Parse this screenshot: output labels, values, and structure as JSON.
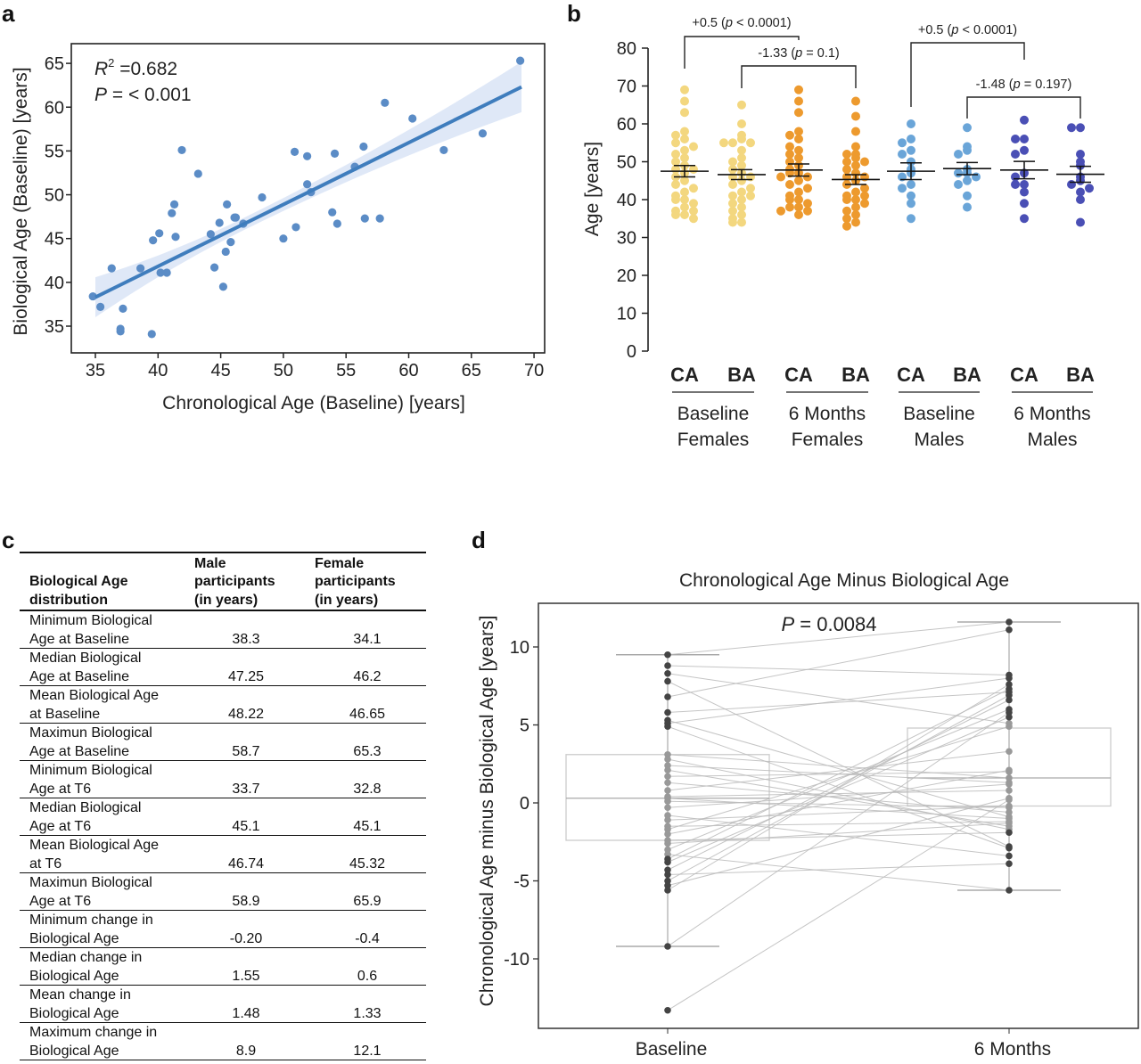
{
  "panels": {
    "a": "a",
    "b": "b",
    "c": "c",
    "d": "d"
  },
  "chart_data": [
    {
      "panel": "a",
      "type": "scatter",
      "xlabel": "Chronological Age (Baseline) [years]",
      "ylabel": "Biological Age (Baseline) [years]",
      "xlim": [
        33,
        71
      ],
      "ylim": [
        32.5,
        68
      ],
      "xticks": [
        "35",
        "40",
        "45",
        "50",
        "55",
        "60",
        "65",
        "70"
      ],
      "yticks": [
        "35",
        "40",
        "45",
        "50",
        "55",
        "60",
        "65"
      ],
      "annotation": {
        "r2_label": "R",
        "r2_sup": "2",
        "r2_value": " =0.682",
        "p_label": "P",
        "p_value": " = < 0.001"
      },
      "fit_line": {
        "x": [
          35,
          69
        ],
        "y": [
          38.3,
          62.3
        ]
      },
      "colors": {
        "points": "#5b8cc6",
        "line": "#3f7dbd",
        "band": "#dce6f6"
      },
      "points": [
        [
          68.9,
          65.3
        ],
        [
          58.1,
          60.5
        ],
        [
          60.3,
          58.7
        ],
        [
          41.9,
          55.1
        ],
        [
          50.9,
          54.9
        ],
        [
          51.9,
          54.4
        ],
        [
          54.1,
          54.7
        ],
        [
          56.4,
          55.5
        ],
        [
          65.9,
          57.0
        ],
        [
          62.8,
          55.1
        ],
        [
          43.2,
          52.4
        ],
        [
          55.7,
          53.2
        ],
        [
          51.9,
          51.2
        ],
        [
          52.2,
          50.3
        ],
        [
          48.3,
          49.7
        ],
        [
          45.5,
          48.9
        ],
        [
          41.3,
          48.9
        ],
        [
          41.1,
          47.9
        ],
        [
          46.1,
          47.4
        ],
        [
          46.2,
          47.4
        ],
        [
          46.8,
          46.7
        ],
        [
          44.9,
          46.8
        ],
        [
          53.9,
          48.0
        ],
        [
          54.3,
          46.7
        ],
        [
          56.5,
          47.3
        ],
        [
          57.7,
          47.3
        ],
        [
          51.0,
          46.3
        ],
        [
          50.0,
          45.0
        ],
        [
          44.2,
          45.5
        ],
        [
          41.4,
          45.2
        ],
        [
          40.1,
          45.6
        ],
        [
          39.6,
          44.8
        ],
        [
          45.8,
          44.6
        ],
        [
          45.4,
          43.5
        ],
        [
          44.5,
          41.7
        ],
        [
          36.3,
          41.6
        ],
        [
          38.6,
          41.6
        ],
        [
          40.7,
          41.1
        ],
        [
          40.2,
          41.1
        ],
        [
          45.2,
          39.5
        ],
        [
          34.8,
          38.4
        ],
        [
          35.4,
          37.2
        ],
        [
          37.2,
          37.0
        ],
        [
          37.0,
          34.7
        ],
        [
          37.0,
          34.4
        ],
        [
          39.5,
          34.1
        ]
      ]
    },
    {
      "panel": "b",
      "type": "scatter",
      "ylabel": "Age [years]",
      "ylim": [
        0,
        80
      ],
      "yticks": [
        "0",
        "10",
        "20",
        "30",
        "40",
        "50",
        "60",
        "70",
        "80"
      ],
      "groups": [
        {
          "tick": "CA",
          "color": "#f3d77f",
          "mean": 47.5,
          "sem": 1.5,
          "values": [
            69,
            66,
            63,
            58,
            57,
            56,
            55,
            54,
            53,
            52,
            51,
            50,
            49,
            48,
            48,
            47,
            46,
            45,
            44,
            43,
            42,
            41,
            40,
            40,
            39,
            38,
            37,
            37,
            36,
            36,
            35
          ]
        },
        {
          "tick": "BA",
          "color": "#f3d77f",
          "mean": 46.6,
          "sem": 1.3,
          "values": [
            65,
            60,
            57,
            56,
            55,
            55,
            55,
            53,
            51,
            50,
            49,
            48,
            47,
            46,
            46,
            45,
            44,
            43,
            42,
            41,
            41,
            40,
            39,
            38,
            37,
            36,
            35,
            34,
            34
          ]
        },
        {
          "tick": "CA",
          "color": "#ed9a2e",
          "mean": 47.8,
          "sem": 1.6,
          "values": [
            69,
            66,
            63,
            58,
            57,
            56,
            54,
            53,
            52,
            51,
            50,
            49,
            48,
            47,
            47,
            46,
            46,
            45,
            44,
            43,
            42,
            41,
            40,
            40,
            39,
            38,
            38,
            37,
            37,
            36
          ]
        },
        {
          "tick": "BA",
          "color": "#ed9a2e",
          "mean": 45.3,
          "sem": 1.3,
          "values": [
            66,
            62,
            58,
            54,
            52,
            52,
            51,
            50,
            50,
            49,
            48,
            47,
            46,
            46,
            45,
            44,
            43,
            42,
            41,
            41,
            40,
            40,
            39,
            38,
            37,
            36,
            35,
            34,
            33
          ]
        },
        {
          "tick": "CA",
          "color": "#6aa5d8",
          "mean": 47.5,
          "sem": 2.2,
          "values": [
            60,
            56,
            55,
            53,
            52,
            50,
            48,
            47,
            46,
            44,
            43,
            41,
            39,
            35
          ]
        },
        {
          "tick": "BA",
          "color": "#6aa5d8",
          "mean": 48.2,
          "sem": 1.6,
          "values": [
            59,
            54,
            53,
            52,
            48,
            47,
            47,
            46,
            45,
            44,
            41,
            38
          ]
        },
        {
          "tick": "CA",
          "color": "#4a4fb5",
          "mean": 47.8,
          "sem": 2.3,
          "values": [
            61,
            56,
            56,
            53,
            52,
            47,
            46,
            44,
            44,
            42,
            39,
            35
          ]
        },
        {
          "tick": "BA",
          "color": "#4a4fb5",
          "mean": 46.7,
          "sem": 2.1,
          "values": [
            59,
            59,
            52,
            50,
            49,
            46,
            45,
            44,
            43,
            42,
            40,
            34
          ]
        }
      ],
      "group_labels": [
        {
          "line1": "Baseline",
          "line2": "Females"
        },
        {
          "line1": "6 Months",
          "line2": "Females"
        },
        {
          "line1": "Baseline",
          "line2": "Males"
        },
        {
          "line1": "6 Months",
          "line2": "Males"
        }
      ],
      "comparisons": [
        {
          "from": 0,
          "to": 2,
          "pre": "+0.5 (",
          "p": "p",
          "post": " < 0.0001)"
        },
        {
          "from": 1,
          "to": 3,
          "pre": "-1.33 (",
          "p": "p",
          "post": " = 0.1)"
        },
        {
          "from": 4,
          "to": 6,
          "pre": "+0.5 (",
          "p": "p",
          "post": " < 0.0001)"
        },
        {
          "from": 5,
          "to": 7,
          "pre": "-1.48 (",
          "p": "p",
          "post": " = 0.197)"
        }
      ]
    },
    {
      "panel": "d",
      "type": "box",
      "title": "Chronological Age Minus Biological Age",
      "ylabel": "Chronological Age minus Biological Age  [years]",
      "categories": [
        "Baseline",
        "6 Months"
      ],
      "ylim": [
        -15.5,
        12.8
      ],
      "yticks": [
        "10",
        "5",
        "0",
        "-5",
        "-10"
      ],
      "annotation": {
        "p_label": "P",
        "p_value": " = 0.0084"
      },
      "boxes": [
        {
          "q1": -2.4,
          "median": 0.3,
          "q3": 3.1,
          "whisker_low": -9.2,
          "whisker_high": 9.5,
          "outliers": [
            -13.3
          ]
        },
        {
          "q1": -0.2,
          "median": 1.6,
          "q3": 4.8,
          "whisker_low": -5.6,
          "whisker_high": 11.6,
          "outliers": []
        }
      ],
      "pairs": [
        [
          9.5,
          11.6
        ],
        [
          8.8,
          8.2
        ],
        [
          8.3,
          5.1
        ],
        [
          7.8,
          -2.8
        ],
        [
          6.8,
          11.1
        ],
        [
          5.8,
          7.1
        ],
        [
          5.3,
          -0.9
        ],
        [
          5.1,
          8.0
        ],
        [
          4.9,
          -2.9
        ],
        [
          3.1,
          1.6
        ],
        [
          2.8,
          -1.7
        ],
        [
          2.4,
          1.3
        ],
        [
          2.1,
          -1.5
        ],
        [
          1.7,
          2.0
        ],
        [
          1.3,
          -0.6
        ],
        [
          0.8,
          3.3
        ],
        [
          0.4,
          0.8
        ],
        [
          0.3,
          -1.0
        ],
        [
          0.1,
          -0.3
        ],
        [
          -0.3,
          1.2
        ],
        [
          -0.8,
          -3.4
        ],
        [
          -1.1,
          -0.2
        ],
        [
          -1.5,
          -1.2
        ],
        [
          -1.7,
          4.9
        ],
        [
          -2.0,
          2.1
        ],
        [
          -2.4,
          -1.9
        ],
        [
          -2.6,
          -1.3
        ],
        [
          -3.0,
          6.0
        ],
        [
          -3.3,
          -5.6
        ],
        [
          -3.6,
          7.3
        ],
        [
          -3.8,
          5.5
        ],
        [
          -4.3,
          6.6
        ],
        [
          -4.6,
          -3.9
        ],
        [
          -5.0,
          6.9
        ],
        [
          -5.3,
          0.3
        ],
        [
          -5.6,
          7.6
        ],
        [
          -9.2,
          5.8
        ],
        [
          -13.3,
          0.2
        ]
      ]
    }
  ],
  "table": {
    "headers": [
      "Biological Age\ndistribution",
      "Male\nparticipants\n(in years)",
      "Female\nparticipants\n(in years)"
    ],
    "rows": [
      {
        "label": "Minimum Biological\nAge at Baseline",
        "male": "38.3",
        "female": "34.1"
      },
      {
        "label": "Median Biological\nAge at Baseline",
        "male": "47.25",
        "female": "46.2"
      },
      {
        "label": "Mean Biological Age\nat Baseline",
        "male": "48.22",
        "female": "46.65"
      },
      {
        "label": "Maximun Biological\nAge at Baseline",
        "male": "58.7",
        "female": "65.3"
      },
      {
        "label": "Minimum Biological\nAge at T6",
        "male": "33.7",
        "female": "32.8"
      },
      {
        "label": "Median Biological\nAge at T6",
        "male": "45.1",
        "female": "45.1"
      },
      {
        "label": "Mean Biological Age\nat T6",
        "male": "46.74",
        "female": "45.32"
      },
      {
        "label": "Maximun Biological\nAge at T6",
        "male": "58.9",
        "female": "65.9"
      },
      {
        "label": "Minimum change in\nBiological Age",
        "male": "-0.20",
        "female": "-0.4"
      },
      {
        "label": "Median change in\nBiological Age",
        "male": "1.55",
        "female": "0.6"
      },
      {
        "label": "Mean change in\nBiological Age",
        "male": "1.48",
        "female": "1.33"
      },
      {
        "label": "Maximum change in\nBiological Age",
        "male": "8.9",
        "female": "12.1"
      }
    ]
  }
}
